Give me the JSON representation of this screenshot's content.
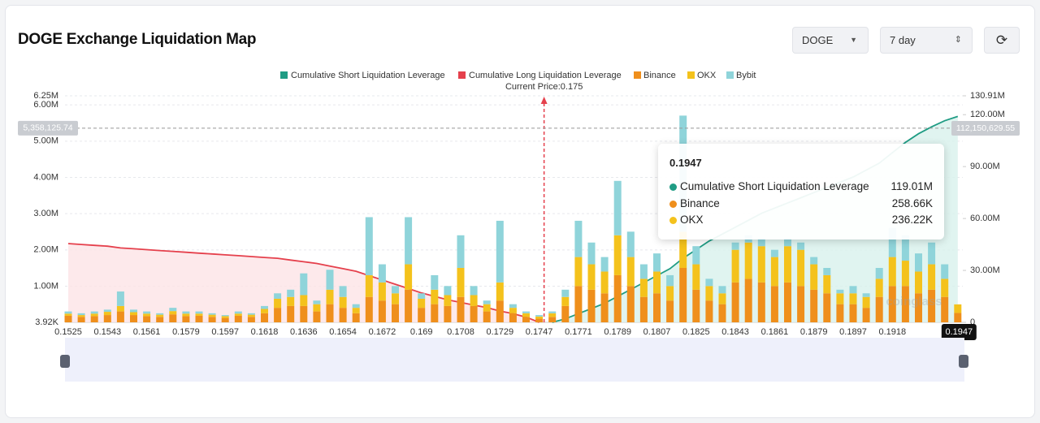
{
  "header": {
    "title": "DOGE Exchange Liquidation Map"
  },
  "controls": {
    "symbol": "DOGE",
    "range": "7 day"
  },
  "chart_data": {
    "type": "bar",
    "current_price": {
      "value": 0.175,
      "label": "Current Price:0.175"
    },
    "watermark": "coinglass",
    "categories": [
      "0.1525",
      null,
      null,
      "0.1543",
      null,
      null,
      "0.1561",
      null,
      null,
      "0.1579",
      null,
      null,
      "0.1597",
      null,
      null,
      "0.1618",
      null,
      null,
      "0.1636",
      null,
      null,
      "0.1654",
      null,
      null,
      "0.1672",
      null,
      null,
      "0.169",
      null,
      null,
      "0.1708",
      null,
      null,
      "0.1729",
      null,
      null,
      "0.1747",
      null,
      null,
      "0.1771",
      null,
      null,
      "0.1789",
      null,
      null,
      "0.1807",
      null,
      null,
      "0.1825",
      null,
      null,
      "0.1843",
      null,
      null,
      "0.1861",
      null,
      null,
      "0.1879",
      null,
      null,
      "0.1897",
      null,
      null,
      "0.1918",
      null,
      null,
      null,
      null,
      "0.1947"
    ],
    "series": [
      {
        "name": "Cumulative Short Liquidation Leverage",
        "type": "line",
        "axis": "y2",
        "color": "#1f9c84",
        "fill": "#d8f1ec",
        "values": [
          null,
          null,
          null,
          null,
          null,
          null,
          null,
          null,
          null,
          null,
          null,
          null,
          null,
          null,
          null,
          null,
          null,
          null,
          null,
          null,
          null,
          null,
          null,
          null,
          null,
          null,
          null,
          null,
          null,
          null,
          null,
          null,
          null,
          null,
          null,
          null,
          null,
          0,
          2000000.0,
          5000000.0,
          8000000.0,
          11000000.0,
          15000000.0,
          19000000.0,
          23000000.0,
          27000000.0,
          31000000.0,
          37000000.0,
          42000000.0,
          47000000.0,
          51000000.0,
          55000000.0,
          59000000.0,
          63000000.0,
          66000000.0,
          69000000.0,
          72000000.0,
          75000000.0,
          78000000.0,
          81000000.0,
          84000000.0,
          88000000.0,
          92000000.0,
          98000000.0,
          104000000.0,
          109000000.0,
          113000000.0,
          116500000.0,
          119010000.0
        ]
      },
      {
        "name": "Cumulative Long Liquidation Leverage",
        "type": "line",
        "axis": "y2",
        "color": "#e5404c",
        "fill": "#fde4e6",
        "values": [
          45500000.0,
          45000000.0,
          44500000.0,
          44000000.0,
          43000000.0,
          42500000.0,
          42000000.0,
          41500000.0,
          41000000.0,
          40500000.0,
          40000000.0,
          39500000.0,
          39000000.0,
          38500000.0,
          38000000.0,
          37500000.0,
          37000000.0,
          36000000.0,
          35000000.0,
          34000000.0,
          32500000.0,
          31000000.0,
          29500000.0,
          27000000.0,
          24500000.0,
          22000000.0,
          19500000.0,
          17000000.0,
          15000000.0,
          13000000.0,
          11500000.0,
          10000000.0,
          8500000.0,
          6500000.0,
          5000000.0,
          3000000.0,
          0,
          null,
          null,
          null,
          null,
          null,
          null,
          null,
          null,
          null,
          null,
          null,
          null,
          null,
          null,
          null,
          null,
          null,
          null,
          null,
          null,
          null,
          null,
          null,
          null,
          null,
          null,
          null,
          null,
          null,
          null,
          null,
          null
        ]
      },
      {
        "name": "Binance",
        "type": "bar",
        "color": "#ef8f1c",
        "values": [
          180000,
          150000,
          170000,
          200000,
          300000,
          200000,
          170000,
          150000,
          220000,
          170000,
          180000,
          150000,
          120000,
          180000,
          150000,
          250000,
          400000,
          450000,
          450000,
          300000,
          500000,
          400000,
          250000,
          700000,
          600000,
          500000,
          900000,
          400000,
          500000,
          450000,
          700000,
          450000,
          300000,
          600000,
          250000,
          150000,
          100000,
          150000,
          450000,
          1000000,
          900000,
          800000,
          1300000,
          1000000,
          700000,
          800000,
          600000,
          1500000,
          900000,
          600000,
          500000,
          1100000,
          1200000,
          1100000,
          1000000,
          1100000,
          1000000,
          900000,
          800000,
          500000,
          500000,
          400000,
          700000,
          1000000,
          1000000,
          800000,
          900000,
          700000,
          258660
        ]
      },
      {
        "name": "OKX",
        "type": "bar",
        "color": "#f4c21c",
        "values": [
          60000,
          50000,
          70000,
          90000,
          150000,
          80000,
          70000,
          60000,
          90000,
          70000,
          60000,
          60000,
          50000,
          60000,
          60000,
          120000,
          250000,
          250000,
          300000,
          200000,
          400000,
          300000,
          150000,
          600000,
          500000,
          300000,
          700000,
          250000,
          400000,
          300000,
          800000,
          300000,
          200000,
          500000,
          150000,
          100000,
          60000,
          100000,
          250000,
          800000,
          700000,
          600000,
          1100000,
          800000,
          500000,
          600000,
          400000,
          1000000,
          700000,
          400000,
          300000,
          900000,
          1000000,
          1000000,
          800000,
          1000000,
          1000000,
          700000,
          500000,
          300000,
          300000,
          300000,
          500000,
          800000,
          700000,
          600000,
          700000,
          500000,
          236220
        ]
      },
      {
        "name": "Bybit",
        "type": "bar",
        "color": "#8fd4da",
        "values": [
          60000,
          50000,
          60000,
          60000,
          400000,
          70000,
          60000,
          40000,
          90000,
          60000,
          60000,
          40000,
          30000,
          60000,
          40000,
          80000,
          150000,
          200000,
          600000,
          100000,
          550000,
          300000,
          100000,
          1600000,
          500000,
          200000,
          1300000,
          150000,
          400000,
          250000,
          900000,
          250000,
          100000,
          1700000,
          100000,
          50000,
          40000,
          50000,
          200000,
          1000000,
          600000,
          400000,
          1500000,
          700000,
          400000,
          500000,
          300000,
          3200000,
          500000,
          200000,
          200000,
          200000,
          200000,
          200000,
          200000,
          200000,
          200000,
          200000,
          200000,
          100000,
          200000,
          100000,
          300000,
          800000,
          700000,
          500000,
          600000,
          400000,
          0
        ]
      }
    ],
    "ylim": [
      3920,
      6250000
    ],
    "yticks": [
      {
        "value": 3920,
        "label": "3.92K"
      },
      {
        "value": 1000000,
        "label": "1.00M"
      },
      {
        "value": 2000000,
        "label": "2.00M"
      },
      {
        "value": 3000000,
        "label": "3.00M"
      },
      {
        "value": 4000000,
        "label": "4.00M"
      },
      {
        "value": 5000000,
        "label": "5.00M"
      },
      {
        "value": 6000000,
        "label": "6.00M"
      },
      {
        "value": 6250000,
        "label": "6.25M"
      }
    ],
    "y2lim": [
      0,
      130910000
    ],
    "y2ticks": [
      0,
      {
        "value": 30000000,
        "label": "30.00M"
      },
      {
        "value": 60000000,
        "label": "60.00M"
      },
      {
        "value": 90000000,
        "label": "90.00M"
      },
      {
        "value": 120000000,
        "label": "120.00M"
      },
      {
        "value": 130910000,
        "label": "130.91M"
      }
    ],
    "grid": true,
    "crosshair": {
      "y": {
        "value": 5358125.74,
        "label": "5,358,125.74"
      },
      "y2": {
        "value": 112150629.55,
        "label": "112,150,629.55"
      }
    },
    "tooltip": {
      "title": "0.1947",
      "rows": [
        {
          "name": "Cumulative Short Liquidation Leverage",
          "value": 119010000,
          "label": "119.01M"
        },
        {
          "name": "Binance",
          "value": 258660,
          "label": "258.66K"
        },
        {
          "name": "OKX",
          "value": 236220,
          "label": "236.22K"
        }
      ]
    }
  }
}
